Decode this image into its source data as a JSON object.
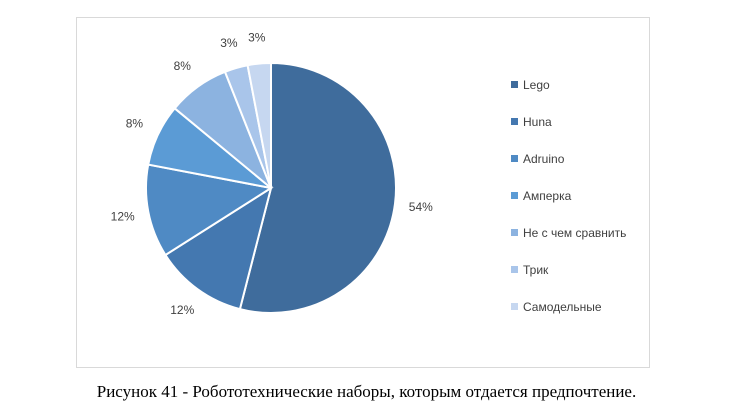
{
  "caption": "Рисунок 41 - Робототехнические наборы, которым отдается предпочтение.",
  "chart_data": {
    "type": "pie",
    "categories": [
      "Lego",
      "Huna",
      "Adruino",
      "Амперка",
      "Не с чем сравнить",
      "Трик",
      "Самодельные"
    ],
    "values": [
      54,
      12,
      12,
      8,
      8,
      3,
      3
    ],
    "data_labels": [
      "54%",
      "12%",
      "12%",
      "8%",
      "8%",
      "3%",
      "3%"
    ],
    "colors": [
      "#3f6c9c",
      "#4478b0",
      "#4f8ac4",
      "#5b9bd5",
      "#8cb3e0",
      "#a9c5ea",
      "#c6d7f0"
    ],
    "legend_position": "right",
    "title": ""
  }
}
